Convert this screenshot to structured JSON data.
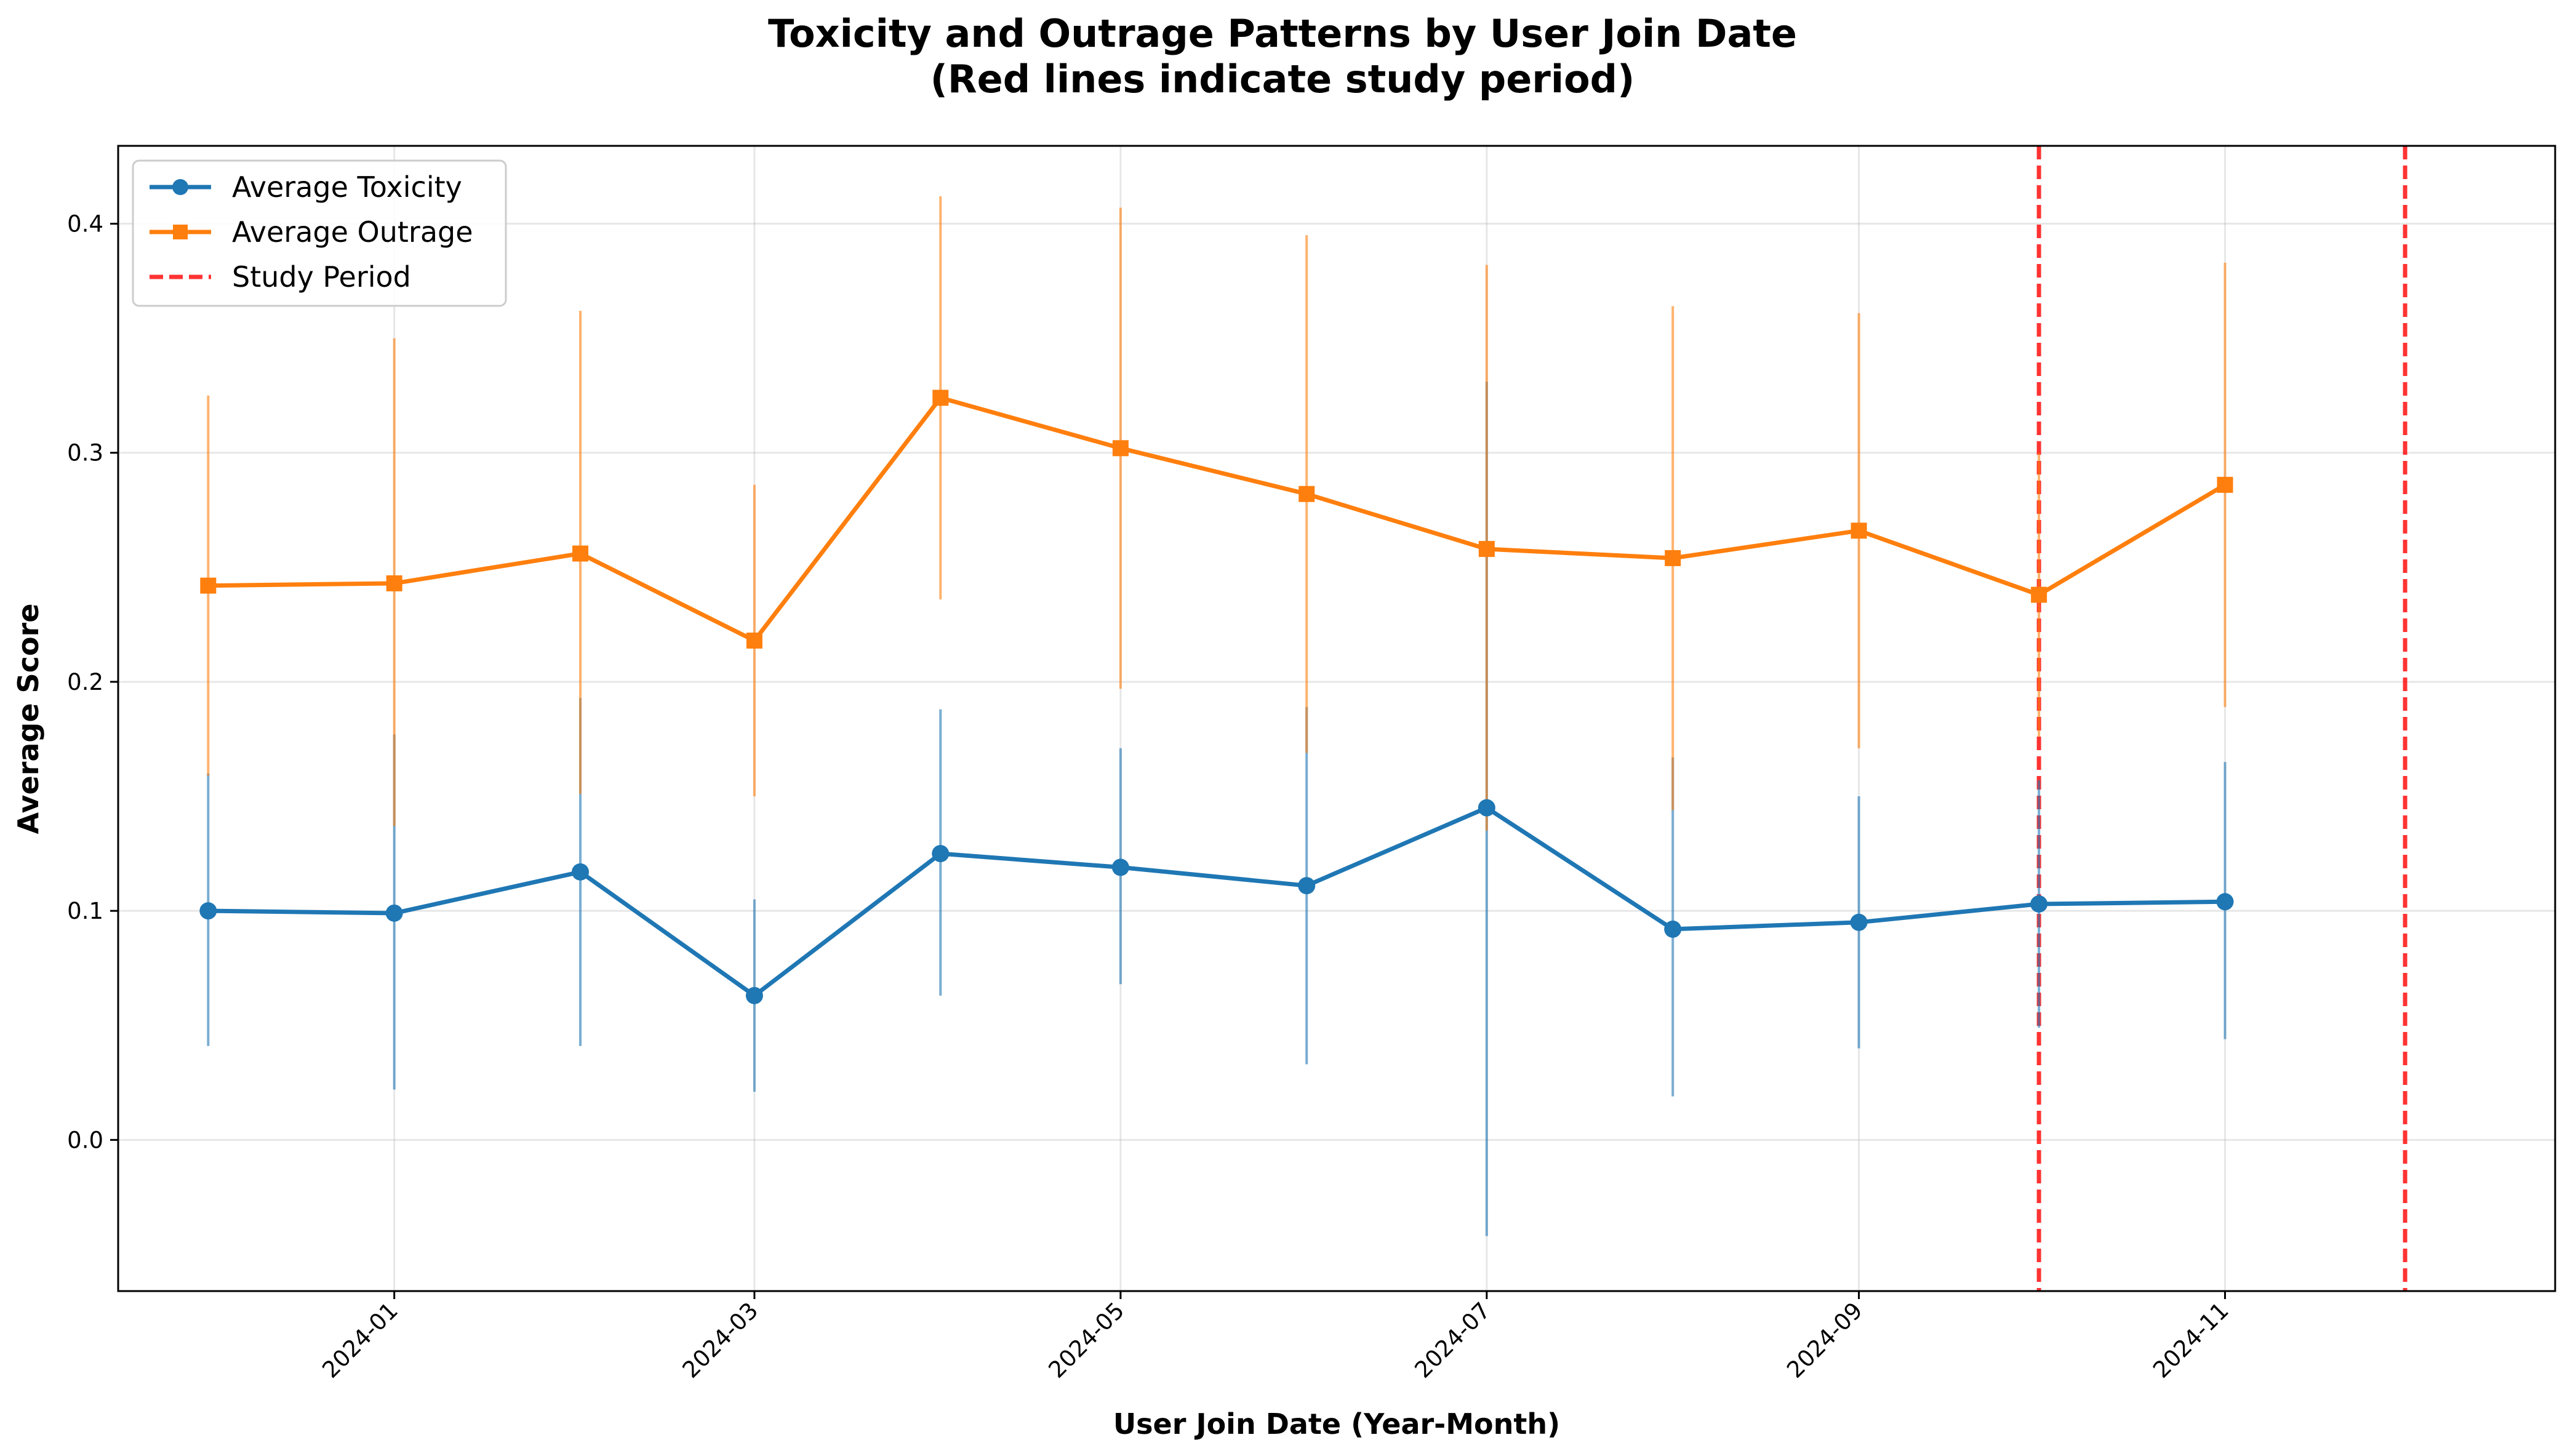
{
  "chart_data": {
    "type": "line",
    "title_line1": "Toxicity and Outrage Patterns by User Join Date",
    "title_line2": "(Red lines indicate study period)",
    "xlabel": "User Join Date (Year-Month)",
    "ylabel": "Average Score",
    "x": [
      "2023-12",
      "2024-01",
      "2024-02",
      "2024-03",
      "2024-04",
      "2024-05",
      "2024-06",
      "2024-07",
      "2024-08",
      "2024-09",
      "2024-10",
      "2024-11"
    ],
    "x_ticks": [
      "2024-01",
      "2024-03",
      "2024-05",
      "2024-07",
      "2024-09",
      "2024-11"
    ],
    "y_ticks": [
      "0.0",
      "0.1",
      "0.2",
      "0.3",
      "0.4"
    ],
    "xlim": [
      "2023-11-16",
      "2024-12-26"
    ],
    "ylim": [
      -0.066,
      0.434
    ],
    "grid": true,
    "legend_position": "top-left",
    "series": [
      {
        "name": "Average Toxicity",
        "color": "#1f77b4",
        "marker": "circle",
        "values": [
          0.1,
          0.099,
          0.117,
          0.063,
          0.125,
          0.119,
          0.111,
          0.145,
          0.092,
          0.095,
          0.103,
          0.104
        ],
        "lower": [
          0.041,
          0.022,
          0.041,
          0.021,
          0.063,
          0.068,
          0.033,
          -0.042,
          0.019,
          0.04,
          0.049,
          0.044
        ],
        "upper": [
          0.16,
          0.177,
          0.193,
          0.105,
          0.188,
          0.171,
          0.189,
          0.331,
          0.167,
          0.15,
          0.157,
          0.165
        ]
      },
      {
        "name": "Average Outrage",
        "color": "#ff7f0e",
        "marker": "square",
        "values": [
          0.242,
          0.243,
          0.256,
          0.218,
          0.324,
          0.302,
          0.282,
          0.258,
          0.254,
          0.266,
          0.238,
          0.286
        ],
        "lower": [
          0.159,
          0.137,
          0.151,
          0.15,
          0.236,
          0.197,
          0.169,
          0.135,
          0.144,
          0.171,
          0.176,
          0.189
        ],
        "upper": [
          0.325,
          0.35,
          0.362,
          0.286,
          0.412,
          0.407,
          0.395,
          0.382,
          0.364,
          0.361,
          0.3,
          0.383
        ]
      }
    ],
    "reference_lines": {
      "name": "Study Period",
      "color": "#ff0000",
      "style": "dashed",
      "x": [
        "2024-10-01",
        "2024-12-01"
      ]
    }
  }
}
